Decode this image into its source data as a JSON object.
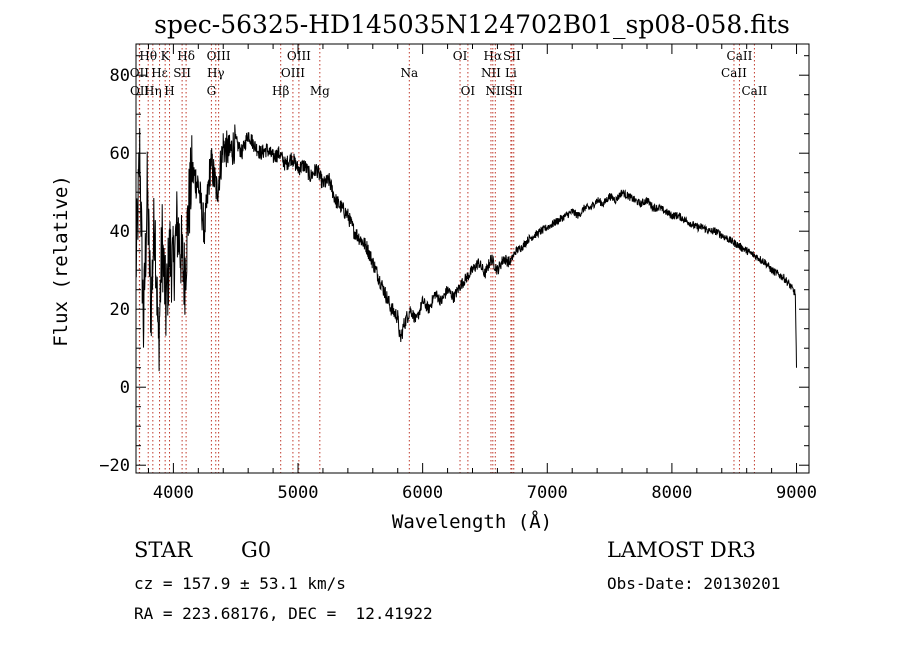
{
  "chart_data": {
    "type": "line",
    "title": "spec-56325-HD145035N124702B01_sp08-058.fits",
    "xlabel": "Wavelength (Å)",
    "ylabel": "Flux (relative)",
    "xlim": [
      3700,
      9100
    ],
    "ylim": [
      -22,
      88
    ],
    "xticks": [
      4000,
      5000,
      6000,
      7000,
      8000,
      9000
    ],
    "yticks": [
      -20,
      0,
      20,
      40,
      60,
      80
    ],
    "series": [
      {
        "name": "flux",
        "x": [
          3700,
          3730,
          3760,
          3790,
          3820,
          3850,
          3880,
          3910,
          3940,
          3970,
          4000,
          4030,
          4060,
          4090,
          4120,
          4150,
          4200,
          4250,
          4300,
          4350,
          4400,
          4450,
          4500,
          4550,
          4600,
          4650,
          4700,
          4750,
          4800,
          4850,
          4900,
          4950,
          5000,
          5050,
          5100,
          5150,
          5200,
          5250,
          5300,
          5350,
          5400,
          5450,
          5500,
          5550,
          5600,
          5650,
          5700,
          5750,
          5800,
          5820,
          5850,
          5900,
          5950,
          6000,
          6050,
          6100,
          6150,
          6200,
          6250,
          6300,
          6350,
          6400,
          6450,
          6500,
          6550,
          6600,
          6650,
          6700,
          6750,
          6800,
          6850,
          6900,
          6950,
          7000,
          7050,
          7100,
          7150,
          7200,
          7250,
          7300,
          7350,
          7400,
          7450,
          7500,
          7550,
          7600,
          7650,
          7700,
          7750,
          7800,
          7850,
          7900,
          7950,
          8000,
          8050,
          8100,
          8150,
          8200,
          8250,
          8300,
          8350,
          8400,
          8450,
          8500,
          8550,
          8600,
          8650,
          8700,
          8750,
          8800,
          8850,
          8900,
          8950,
          8990,
          9000
        ],
        "y": [
          30,
          60,
          15,
          50,
          20,
          45,
          10,
          38,
          20,
          35,
          30,
          42,
          35,
          28,
          45,
          55,
          52,
          40,
          58,
          50,
          62,
          60,
          63,
          60,
          65,
          62,
          60,
          61,
          59,
          60,
          57,
          59,
          56,
          57,
          54,
          56,
          52,
          53,
          48,
          46,
          44,
          40,
          38,
          36,
          32,
          28,
          24,
          20,
          18,
          12,
          16,
          20,
          17,
          22,
          20,
          24,
          22,
          25,
          23,
          26,
          28,
          30,
          32,
          29,
          33,
          30,
          33,
          32,
          35,
          36,
          38,
          39,
          40,
          41,
          42,
          43,
          44,
          45,
          44,
          46,
          46,
          48,
          47,
          49,
          48,
          50,
          49,
          48,
          47,
          48,
          46,
          46,
          45,
          44,
          44,
          43,
          42,
          41,
          41,
          40,
          40,
          39,
          38,
          37,
          36,
          35,
          34,
          33,
          32,
          30,
          29,
          28,
          26,
          24,
          5
        ]
      }
    ],
    "lines": [
      {
        "label": "Hθ",
        "x": 3798,
        "row": 0
      },
      {
        "label": "OII",
        "x": 3727,
        "row": 1
      },
      {
        "label": "OII",
        "x": 3729,
        "row": 2
      },
      {
        "label": "Hη",
        "x": 3835,
        "row": 2
      },
      {
        "label": "Hε",
        "x": 3889,
        "row": 1
      },
      {
        "label": "K",
        "x": 3934,
        "row": 0
      },
      {
        "label": "H",
        "x": 3969,
        "row": 2
      },
      {
        "label": "SII",
        "x": 4070,
        "row": 1
      },
      {
        "label": "Hδ",
        "x": 4102,
        "row": 0
      },
      {
        "label": "OIII",
        "x": 4363,
        "row": 0
      },
      {
        "label": "Hγ",
        "x": 4340,
        "row": 1
      },
      {
        "label": "G",
        "x": 4305,
        "row": 2
      },
      {
        "label": "Hβ",
        "x": 4861,
        "row": 2
      },
      {
        "label": "OIII",
        "x": 5007,
        "row": 0
      },
      {
        "label": "OIII",
        "x": 4959,
        "row": 1
      },
      {
        "label": "Mg",
        "x": 5175,
        "row": 2
      },
      {
        "label": "Na",
        "x": 5893,
        "row": 1
      },
      {
        "label": "OI",
        "x": 6300,
        "row": 0
      },
      {
        "label": "OI",
        "x": 6363,
        "row": 2
      },
      {
        "label": "Hα",
        "x": 6563,
        "row": 0
      },
      {
        "label": "NII",
        "x": 6548,
        "row": 1
      },
      {
        "label": "NII",
        "x": 6583,
        "row": 2
      },
      {
        "label": "SII",
        "x": 6716,
        "row": 0
      },
      {
        "label": "Li",
        "x": 6708,
        "row": 1
      },
      {
        "label": "SII",
        "x": 6731,
        "row": 2
      },
      {
        "label": "CaII",
        "x": 8542,
        "row": 0
      },
      {
        "label": "CaII",
        "x": 8498,
        "row": 1
      },
      {
        "label": "CaII",
        "x": 8662,
        "row": 2
      }
    ]
  },
  "info": {
    "class_label": "STAR",
    "subclass": "G0",
    "survey": "LAMOST DR3",
    "redshift": "cz = 157.9 ± 53.1 km/s",
    "obs_date": "Obs-Date: 20130201",
    "coords": "RA = 223.68176, DEC =  12.41922"
  }
}
